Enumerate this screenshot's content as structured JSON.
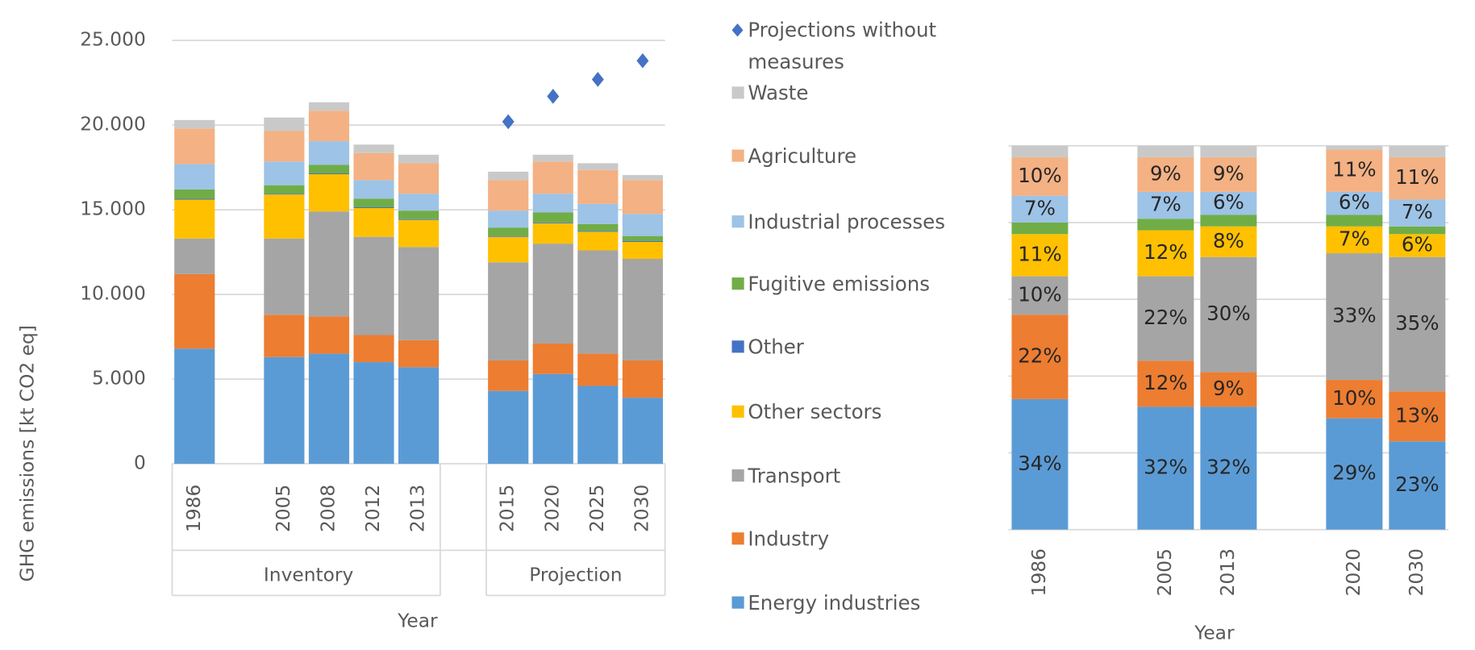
{
  "chart_data": [
    {
      "type": "bar",
      "stacked": true,
      "y_label": "GHG emissions [kt CO2 eq]",
      "x_label": "Year",
      "groups": [
        "Inventory",
        "Projection"
      ],
      "categories": [
        "1986",
        null,
        "2005",
        "2008",
        "2012",
        "2013",
        null,
        "2015",
        "2020",
        "2025",
        "2030"
      ],
      "ylim": [
        0,
        25000
      ],
      "yticks": [
        0,
        {
          "value": 5000,
          "label": "5.000"
        },
        {
          "value": 10000,
          "label": "10.000"
        },
        {
          "value": 15000,
          "label": "15.000"
        },
        {
          "value": 20000,
          "label": "20.000"
        },
        {
          "value": 25000,
          "label": "25.000"
        }
      ],
      "grid": true,
      "series": [
        {
          "name": "Energy industries",
          "color": "#5b9bd5",
          "values": [
            6800,
            null,
            6300,
            6500,
            6000,
            5700,
            null,
            4300,
            5300,
            4600,
            3900
          ]
        },
        {
          "name": "Industry",
          "color": "#ed7d31",
          "values": [
            4400,
            null,
            2500,
            2200,
            1600,
            1600,
            null,
            1800,
            1800,
            1900,
            2200
          ]
        },
        {
          "name": "Transport",
          "color": "#a5a5a5",
          "values": [
            2100,
            null,
            4500,
            6200,
            5800,
            5500,
            null,
            5800,
            5900,
            6100,
            6000
          ]
        },
        {
          "name": "Other sectors",
          "color": "#ffc000",
          "values": [
            2300,
            null,
            2600,
            2200,
            1700,
            1600,
            null,
            1500,
            1200,
            1100,
            1000
          ]
        },
        {
          "name": "Other",
          "color": "#4472c4",
          "values": [
            50,
            null,
            50,
            50,
            50,
            50,
            null,
            50,
            50,
            50,
            50
          ]
        },
        {
          "name": "Fugitive emissions",
          "color": "#70ad47",
          "values": [
            550,
            null,
            500,
            500,
            500,
            500,
            null,
            500,
            600,
            400,
            300
          ]
        },
        {
          "name": "Industrial processes",
          "color": "#9dc3e6",
          "values": [
            1500,
            null,
            1400,
            1400,
            1100,
            1000,
            null,
            1000,
            1100,
            1200,
            1300
          ]
        },
        {
          "name": "Agriculture",
          "color": "#f4b183",
          "values": [
            2100,
            null,
            1800,
            1800,
            1600,
            1800,
            null,
            1800,
            1900,
            2000,
            2000
          ]
        },
        {
          "name": "Waste",
          "color": "#c9c9c9",
          "values": [
            500,
            null,
            800,
            500,
            500,
            500,
            null,
            500,
            400,
            400,
            300
          ]
        },
        {
          "name": "Projections without measures",
          "type": "scatter",
          "color": "#4472c4",
          "values": [
            null,
            null,
            null,
            null,
            null,
            null,
            null,
            20200,
            21700,
            22700,
            23800
          ]
        }
      ]
    },
    {
      "type": "bar",
      "stacked": true,
      "x_label": "Year",
      "categories": [
        "1986",
        null,
        "2005",
        "2013",
        null,
        "2020",
        "2030"
      ],
      "ylim": [
        0,
        100
      ],
      "yticks": [
        0,
        20,
        40,
        60,
        80,
        100
      ],
      "grid": true,
      "series": [
        {
          "color": "#5b9bd5",
          "values": [
            34,
            null,
            32,
            32,
            null,
            29,
            23
          ],
          "value_labels": [
            "34%",
            null,
            "32%",
            "32%",
            null,
            "29%",
            "23%"
          ]
        },
        {
          "color": "#ed7d31",
          "values": [
            22,
            null,
            12,
            9,
            null,
            10,
            13
          ],
          "value_labels": [
            "22%",
            null,
            "12%",
            "9%",
            null,
            "10%",
            "13%"
          ]
        },
        {
          "color": "#a5a5a5",
          "values": [
            10,
            null,
            22,
            30,
            null,
            33,
            35
          ],
          "value_labels": [
            "10%",
            null,
            "22%",
            "30%",
            null,
            "33%",
            "35%"
          ]
        },
        {
          "color": "#ffc000",
          "values": [
            11,
            null,
            12,
            8,
            null,
            7,
            6
          ],
          "value_labels": [
            "11%",
            null,
            "12%",
            "8%",
            null,
            "7%",
            "6%"
          ]
        },
        {
          "color": "#4472c4",
          "values": [
            0,
            null,
            0,
            0,
            null,
            0,
            0
          ]
        },
        {
          "color": "#70ad47",
          "values": [
            3,
            null,
            3,
            3,
            null,
            3,
            2
          ]
        },
        {
          "color": "#9dc3e6",
          "values": [
            7,
            null,
            7,
            6,
            null,
            6,
            7
          ],
          "value_labels": [
            "7%",
            null,
            "7%",
            "6%",
            null,
            "6%",
            "7%"
          ]
        },
        {
          "color": "#f4b183",
          "values": [
            10,
            null,
            9,
            9,
            null,
            11,
            11
          ],
          "value_labels": [
            "10%",
            null,
            "9%",
            "9%",
            null,
            "11%",
            "11%"
          ]
        },
        {
          "color": "#c9c9c9",
          "values": [
            3,
            null,
            3,
            3,
            null,
            1,
            3
          ]
        }
      ]
    }
  ]
}
